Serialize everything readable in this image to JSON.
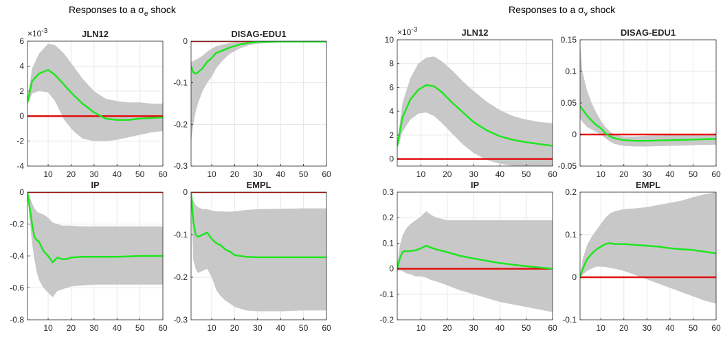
{
  "figure": {
    "group_titles": [
      {
        "text": "Responses to a σ",
        "sub": "e",
        "tail": " shock"
      },
      {
        "text": "Responses to a σ",
        "sub": "v",
        "tail": " shock"
      }
    ]
  },
  "colors": {
    "band": "#c8c8c8",
    "median": "#1ee61e",
    "zero_line": "#e01010",
    "axis": "#262626",
    "grid": "#e6e6e6"
  },
  "chart_data": [
    {
      "type": "line",
      "title": "JLN12",
      "exponent": "×10",
      "exponent_power": "-3",
      "xlim": [
        1,
        60
      ],
      "ylim": [
        -4,
        6
      ],
      "xticks": [
        10,
        20,
        30,
        40,
        50,
        60
      ],
      "xtick_labels": [
        "10",
        "20",
        "30",
        "40",
        "50",
        "60"
      ],
      "yticks": [
        -4,
        -2,
        0,
        2,
        4,
        6
      ],
      "ytick_labels": [
        "-4",
        "-2",
        "0",
        "2",
        "4",
        "6"
      ],
      "grid": true,
      "zero_line": true,
      "x": [
        1,
        3,
        6,
        10,
        13,
        17,
        21,
        25,
        30,
        35,
        40,
        45,
        50,
        55,
        60
      ],
      "median": [
        1.1,
        2.8,
        3.4,
        3.7,
        3.3,
        2.5,
        1.7,
        1.0,
        0.3,
        -0.2,
        -0.3,
        -0.3,
        -0.2,
        -0.15,
        -0.1
      ],
      "upper": [
        1.4,
        3.8,
        5.0,
        5.8,
        5.7,
        5.0,
        4.0,
        3.0,
        2.0,
        1.4,
        1.2,
        1.1,
        1.1,
        1.0,
        1.0
      ],
      "lower": [
        0.9,
        1.8,
        2.0,
        1.9,
        1.2,
        -0.3,
        -1.2,
        -1.8,
        -2.0,
        -2.0,
        -1.9,
        -1.7,
        -1.5,
        -1.3,
        -1.2
      ]
    },
    {
      "type": "line",
      "title": "DISAG-EDU1",
      "xlim": [
        1,
        60
      ],
      "ylim": [
        -0.3,
        0.0
      ],
      "xticks": [
        10,
        20,
        30,
        40,
        50,
        60
      ],
      "xtick_labels": [
        "10",
        "20",
        "30",
        "40",
        "50",
        "60"
      ],
      "yticks": [
        -0.3,
        -0.2,
        -0.1,
        0.0
      ],
      "ytick_labels": [
        "-0.3",
        "-0.2",
        "-0.1",
        "0"
      ],
      "grid": true,
      "zero_line": true,
      "x": [
        1,
        2,
        3,
        4,
        6,
        8,
        10,
        12,
        15,
        18,
        22,
        26,
        30,
        40,
        50,
        60
      ],
      "median": [
        -0.06,
        -0.075,
        -0.078,
        -0.075,
        -0.065,
        -0.05,
        -0.04,
        -0.028,
        -0.022,
        -0.015,
        -0.008,
        -0.004,
        -0.002,
        -0.001,
        -0.001,
        -0.001
      ],
      "upper": [
        -0.05,
        -0.048,
        -0.045,
        -0.042,
        -0.035,
        -0.025,
        -0.018,
        -0.012,
        -0.008,
        -0.004,
        -0.001,
        0.002,
        0.003,
        0.003,
        0.003,
        0.003
      ],
      "lower": [
        -0.24,
        -0.2,
        -0.17,
        -0.15,
        -0.12,
        -0.1,
        -0.085,
        -0.065,
        -0.045,
        -0.03,
        -0.018,
        -0.01,
        -0.006,
        -0.003,
        -0.003,
        -0.003
      ]
    },
    {
      "type": "line",
      "title": "IP",
      "xlim": [
        1,
        60
      ],
      "ylim": [
        -0.8,
        0.0
      ],
      "xticks": [
        10,
        20,
        30,
        40,
        50,
        60
      ],
      "xtick_labels": [
        "10",
        "20",
        "30",
        "40",
        "50",
        "60"
      ],
      "yticks": [
        -0.8,
        -0.6,
        -0.4,
        -0.2,
        0.0
      ],
      "ytick_labels": [
        "-0.8",
        "-0.6",
        "-0.4",
        "-0.2",
        "0"
      ],
      "grid": true,
      "zero_line": true,
      "x": [
        1,
        2,
        3,
        4,
        5,
        6,
        8,
        10,
        12,
        14,
        16,
        18,
        20,
        25,
        30,
        40,
        50,
        60
      ],
      "median": [
        0.0,
        -0.1,
        -0.2,
        -0.28,
        -0.3,
        -0.31,
        -0.37,
        -0.4,
        -0.44,
        -0.41,
        -0.42,
        -0.42,
        -0.41,
        -0.405,
        -0.405,
        -0.405,
        -0.4,
        -0.4
      ],
      "upper": [
        0.0,
        -0.03,
        -0.07,
        -0.1,
        -0.12,
        -0.13,
        -0.14,
        -0.16,
        -0.19,
        -0.2,
        -0.21,
        -0.21,
        -0.21,
        -0.215,
        -0.215,
        -0.215,
        -0.215,
        -0.215
      ],
      "lower": [
        -0.02,
        -0.18,
        -0.32,
        -0.42,
        -0.5,
        -0.55,
        -0.6,
        -0.63,
        -0.66,
        -0.62,
        -0.61,
        -0.6,
        -0.59,
        -0.585,
        -0.58,
        -0.58,
        -0.58,
        -0.58
      ]
    },
    {
      "type": "line",
      "title": "EMPL",
      "xlim": [
        1,
        60
      ],
      "ylim": [
        -0.3,
        0.0
      ],
      "xticks": [
        10,
        20,
        30,
        40,
        50,
        60
      ],
      "xtick_labels": [
        "10",
        "20",
        "30",
        "40",
        "50",
        "60"
      ],
      "yticks": [
        -0.3,
        -0.2,
        -0.1,
        0.0
      ],
      "ytick_labels": [
        "-0.3",
        "-0.2",
        "-0.1",
        "0"
      ],
      "grid": true,
      "zero_line": true,
      "x": [
        1,
        2,
        3,
        4,
        6,
        8,
        10,
        12,
        14,
        16,
        18,
        20,
        25,
        30,
        40,
        50,
        60
      ],
      "median": [
        0.0,
        -0.07,
        -0.1,
        -0.105,
        -0.1,
        -0.095,
        -0.11,
        -0.12,
        -0.125,
        -0.135,
        -0.14,
        -0.148,
        -0.152,
        -0.153,
        -0.153,
        -0.153,
        -0.153
      ],
      "upper": [
        0.0,
        -0.02,
        -0.03,
        -0.035,
        -0.04,
        -0.04,
        -0.043,
        -0.045,
        -0.045,
        -0.046,
        -0.046,
        -0.045,
        -0.042,
        -0.04,
        -0.039,
        -0.038,
        -0.038
      ],
      "lower": [
        -0.02,
        -0.16,
        -0.18,
        -0.19,
        -0.185,
        -0.18,
        -0.2,
        -0.23,
        -0.245,
        -0.255,
        -0.262,
        -0.27,
        -0.278,
        -0.28,
        -0.28,
        -0.278,
        -0.278
      ]
    },
    {
      "type": "line",
      "title": "JLN12",
      "exponent": "×10",
      "exponent_power": "-3",
      "xlim": [
        1,
        60
      ],
      "ylim": [
        -0.6,
        10
      ],
      "xticks": [
        10,
        20,
        30,
        40,
        50,
        60
      ],
      "xtick_labels": [
        "10",
        "20",
        "30",
        "40",
        "50",
        "60"
      ],
      "yticks": [
        0,
        2,
        4,
        6,
        8,
        10
      ],
      "ytick_labels": [
        "0",
        "2",
        "4",
        "6",
        "8",
        "10"
      ],
      "grid": true,
      "zero_line": true,
      "x": [
        1,
        3,
        6,
        9,
        12,
        15,
        18,
        22,
        26,
        30,
        35,
        40,
        45,
        50,
        55,
        60
      ],
      "median": [
        1.1,
        3.5,
        5.0,
        5.8,
        6.2,
        6.1,
        5.6,
        4.7,
        3.9,
        3.1,
        2.4,
        1.9,
        1.6,
        1.4,
        1.25,
        1.1
      ],
      "upper": [
        1.4,
        4.7,
        6.8,
        8.0,
        8.5,
        8.6,
        8.2,
        7.4,
        6.5,
        5.7,
        4.8,
        4.1,
        3.6,
        3.3,
        3.1,
        3.0
      ],
      "lower": [
        0.8,
        2.3,
        3.3,
        3.8,
        3.9,
        3.6,
        3.0,
        2.1,
        1.2,
        0.5,
        -0.1,
        -0.4,
        -0.6,
        -0.6,
        -0.6,
        -0.6
      ]
    },
    {
      "type": "line",
      "title": "DISAG-EDU1",
      "xlim": [
        1,
        60
      ],
      "ylim": [
        -0.05,
        0.15
      ],
      "xticks": [
        10,
        20,
        30,
        40,
        50,
        60
      ],
      "xtick_labels": [
        "10",
        "20",
        "30",
        "40",
        "50",
        "60"
      ],
      "yticks": [
        -0.05,
        0.0,
        0.05,
        0.1,
        0.15
      ],
      "ytick_labels": [
        "-0.05",
        "0",
        "0.05",
        "0.1",
        "0.15"
      ],
      "grid": true,
      "zero_line": true,
      "x": [
        1,
        2,
        4,
        6,
        8,
        10,
        12,
        14,
        16,
        20,
        25,
        30,
        40,
        50,
        60
      ],
      "median": [
        0.045,
        0.04,
        0.03,
        0.022,
        0.015,
        0.01,
        0.002,
        -0.003,
        -0.006,
        -0.009,
        -0.01,
        -0.01,
        -0.009,
        -0.008,
        -0.007
      ],
      "upper": [
        0.145,
        0.1,
        0.07,
        0.05,
        0.035,
        0.022,
        0.012,
        0.005,
        0.0,
        -0.003,
        -0.003,
        -0.002,
        -0.001,
        0.0,
        0.0
      ],
      "lower": [
        0.025,
        0.02,
        0.012,
        0.008,
        0.004,
        0.0,
        -0.006,
        -0.011,
        -0.015,
        -0.018,
        -0.019,
        -0.019,
        -0.018,
        -0.017,
        -0.016
      ]
    },
    {
      "type": "line",
      "title": "IP",
      "xlim": [
        1,
        60
      ],
      "ylim": [
        -0.2,
        0.3
      ],
      "xticks": [
        10,
        20,
        30,
        40,
        50,
        60
      ],
      "xtick_labels": [
        "10",
        "20",
        "30",
        "40",
        "50",
        "60"
      ],
      "yticks": [
        -0.2,
        -0.1,
        0.0,
        0.1,
        0.2,
        0.3
      ],
      "ytick_labels": [
        "-0.2",
        "-0.1",
        "0",
        "0.1",
        "0.2",
        "0.3"
      ],
      "grid": true,
      "zero_line": true,
      "x": [
        1,
        2,
        3,
        4,
        5,
        6,
        8,
        10,
        12,
        14,
        16,
        20,
        25,
        30,
        40,
        50,
        60
      ],
      "median": [
        0.0,
        0.04,
        0.065,
        0.07,
        0.068,
        0.07,
        0.072,
        0.08,
        0.09,
        0.082,
        0.075,
        0.065,
        0.05,
        0.04,
        0.022,
        0.01,
        0.0
      ],
      "upper": [
        0.02,
        0.09,
        0.13,
        0.15,
        0.165,
        0.175,
        0.19,
        0.205,
        0.225,
        0.21,
        0.2,
        0.19,
        0.19,
        0.19,
        0.19,
        0.19,
        0.19
      ],
      "lower": [
        -0.01,
        -0.005,
        -0.01,
        -0.015,
        -0.02,
        -0.022,
        -0.03,
        -0.03,
        -0.035,
        -0.045,
        -0.05,
        -0.065,
        -0.085,
        -0.1,
        -0.13,
        -0.15,
        -0.17
      ]
    },
    {
      "type": "line",
      "title": "EMPL",
      "xlim": [
        1,
        60
      ],
      "ylim": [
        -0.1,
        0.2
      ],
      "xticks": [
        10,
        20,
        30,
        40,
        50,
        60
      ],
      "xtick_labels": [
        "10",
        "20",
        "30",
        "40",
        "50",
        "60"
      ],
      "yticks": [
        -0.1,
        0.0,
        0.1,
        0.2
      ],
      "ytick_labels": [
        "-0.1",
        "0",
        "0.1",
        "0.2"
      ],
      "grid": true,
      "zero_line": true,
      "x": [
        1,
        2,
        4,
        6,
        8,
        10,
        12,
        14,
        16,
        20,
        25,
        30,
        35,
        40,
        45,
        50,
        55,
        60
      ],
      "median": [
        0.0,
        0.018,
        0.042,
        0.055,
        0.065,
        0.072,
        0.078,
        0.08,
        0.078,
        0.078,
        0.076,
        0.074,
        0.072,
        0.068,
        0.066,
        0.064,
        0.06,
        0.056
      ],
      "upper": [
        0.0,
        0.04,
        0.075,
        0.095,
        0.11,
        0.125,
        0.14,
        0.15,
        0.155,
        0.16,
        0.162,
        0.165,
        0.17,
        0.175,
        0.18,
        0.188,
        0.195,
        0.2
      ],
      "lower": [
        0.0,
        0.005,
        0.015,
        0.02,
        0.025,
        0.025,
        0.024,
        0.022,
        0.02,
        0.015,
        0.005,
        -0.005,
        -0.015,
        -0.025,
        -0.035,
        -0.045,
        -0.055,
        -0.062
      ]
    }
  ]
}
